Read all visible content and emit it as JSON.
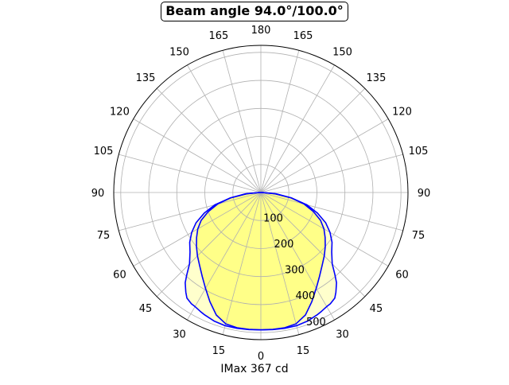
{
  "chart_data": {
    "type": "polar",
    "title": "Beam angle 94.0°/100.0°",
    "xlabel": "IMax 367 cd",
    "angle_ticks": [
      {
        "deg": 180,
        "label": "180"
      },
      {
        "deg": -165,
        "label": "165"
      },
      {
        "deg": -150,
        "label": "150"
      },
      {
        "deg": -135,
        "label": "135"
      },
      {
        "deg": -120,
        "label": "120"
      },
      {
        "deg": -105,
        "label": "105"
      },
      {
        "deg": -90,
        "label": "90"
      },
      {
        "deg": -75,
        "label": "75"
      },
      {
        "deg": -60,
        "label": "60"
      },
      {
        "deg": -45,
        "label": "45"
      },
      {
        "deg": -30,
        "label": "30"
      },
      {
        "deg": -15,
        "label": "15"
      },
      {
        "deg": 0,
        "label": "0"
      },
      {
        "deg": 15,
        "label": "15"
      },
      {
        "deg": 30,
        "label": "30"
      },
      {
        "deg": 45,
        "label": "45"
      },
      {
        "deg": 60,
        "label": "60"
      },
      {
        "deg": 75,
        "label": "75"
      },
      {
        "deg": 90,
        "label": "90"
      },
      {
        "deg": 105,
        "label": "105"
      },
      {
        "deg": 120,
        "label": "120"
      },
      {
        "deg": 135,
        "label": "135"
      },
      {
        "deg": 150,
        "label": "150"
      },
      {
        "deg": 165,
        "label": "165"
      }
    ],
    "radial_ticks": [
      {
        "value": 100,
        "label": "100"
      },
      {
        "value": 200,
        "label": "200"
      },
      {
        "value": 300,
        "label": "300"
      },
      {
        "value": 400,
        "label": "400"
      },
      {
        "value": 500,
        "label": "500"
      }
    ],
    "rmax": 525,
    "grid": true,
    "colors": {
      "curve": "#0000ff",
      "fill_inner": "#ffff88",
      "fill_outer": "#ffffcc",
      "grid": "#b0b0b0"
    },
    "series": [
      {
        "role": "outer",
        "points": [
          [
            0,
            490
          ],
          [
            5,
            491
          ],
          [
            10,
            492
          ],
          [
            15,
            492
          ],
          [
            20,
            488
          ],
          [
            25,
            480
          ],
          [
            27,
            476
          ],
          [
            30,
            470
          ],
          [
            32,
            468
          ],
          [
            35,
            460
          ],
          [
            37,
            445
          ],
          [
            40,
            420
          ],
          [
            42,
            395
          ],
          [
            45,
            360
          ],
          [
            50,
            330
          ],
          [
            55,
            310
          ],
          [
            60,
            285
          ],
          [
            65,
            255
          ],
          [
            70,
            215
          ],
          [
            75,
            170
          ],
          [
            80,
            110
          ],
          [
            85,
            50
          ],
          [
            90,
            5
          ]
        ]
      },
      {
        "role": "inner",
        "points": [
          [
            0,
            490
          ],
          [
            5,
            490
          ],
          [
            10,
            490
          ],
          [
            15,
            485
          ],
          [
            20,
            465
          ],
          [
            25,
            430
          ],
          [
            30,
            395
          ],
          [
            35,
            365
          ],
          [
            40,
            340
          ],
          [
            45,
            320
          ],
          [
            50,
            300
          ],
          [
            55,
            280
          ],
          [
            60,
            260
          ],
          [
            65,
            235
          ],
          [
            70,
            200
          ],
          [
            75,
            160
          ],
          [
            80,
            110
          ],
          [
            85,
            55
          ],
          [
            90,
            5
          ]
        ]
      }
    ]
  }
}
